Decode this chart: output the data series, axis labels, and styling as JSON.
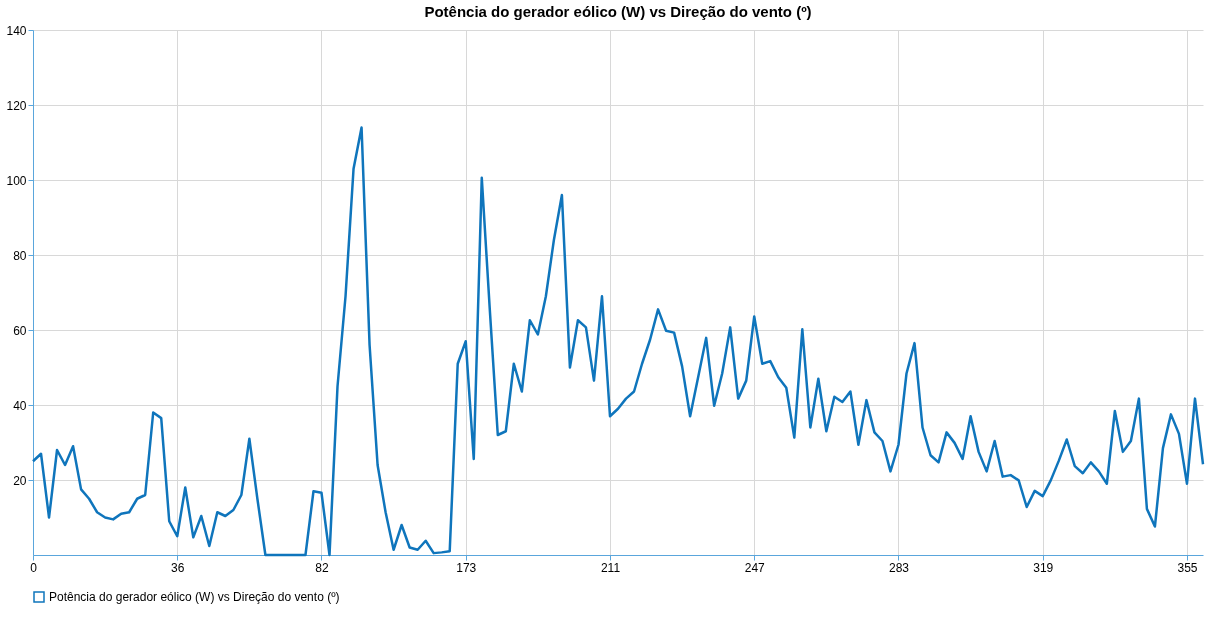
{
  "chart_data": {
    "type": "line",
    "title": "Potência do gerador eólico (W) vs Direção do vento (º)",
    "categories": [
      "0",
      null,
      null,
      null,
      null,
      null,
      null,
      null,
      null,
      null,
      null,
      null,
      null,
      null,
      null,
      null,
      null,
      null,
      "36",
      null,
      null,
      null,
      null,
      null,
      null,
      null,
      null,
      null,
      null,
      null,
      null,
      null,
      null,
      null,
      null,
      null,
      "82",
      null,
      null,
      null,
      null,
      null,
      null,
      null,
      null,
      null,
      null,
      null,
      null,
      null,
      null,
      null,
      null,
      null,
      "173",
      null,
      null,
      null,
      null,
      null,
      null,
      null,
      null,
      null,
      null,
      null,
      null,
      null,
      null,
      null,
      null,
      null,
      "211",
      null,
      null,
      null,
      null,
      null,
      null,
      null,
      null,
      null,
      null,
      null,
      null,
      null,
      null,
      null,
      null,
      null,
      "247",
      null,
      null,
      null,
      null,
      null,
      null,
      null,
      null,
      null,
      null,
      null,
      null,
      null,
      null,
      null,
      null,
      null,
      "283",
      null,
      null,
      null,
      null,
      null,
      null,
      null,
      null,
      null,
      null,
      null,
      null,
      null,
      null,
      null,
      null,
      null,
      "319",
      null,
      null,
      null,
      null,
      null,
      null,
      null,
      null,
      null,
      null,
      null,
      null,
      null,
      null,
      null,
      null,
      null,
      "355",
      null,
      null
    ],
    "series": [
      {
        "name": "Potência do gerador eólico (W) vs Direção do vento (º)",
        "color": "#0f75bc",
        "values": [
          25,
          27,
          10,
          28,
          24,
          29,
          17.5,
          15,
          11.4,
          10,
          9.5,
          11,
          11.4,
          15,
          16,
          38,
          36.5,
          9,
          5,
          18,
          4.7,
          10.4,
          2.4,
          11.4,
          10.4,
          12,
          16,
          31,
          15,
          0,
          0,
          0,
          0,
          0,
          0,
          17,
          16.6,
          0,
          45,
          69,
          103,
          114,
          56,
          24,
          11.4,
          1.4,
          8,
          2,
          1.4,
          3.8,
          0.5,
          0.7,
          1,
          51,
          57,
          25.6,
          100.6,
          65.5,
          32,
          33,
          51,
          43.6,
          62.6,
          58.8,
          69,
          84,
          96,
          50,
          62.6,
          60.7,
          46.5,
          69,
          37,
          39,
          41.7,
          43.6,
          51,
          57.4,
          65.5,
          59.8,
          59.3,
          50.3,
          37,
          47.4,
          57.9,
          39.8,
          48.4,
          60.7,
          41.7,
          46.5,
          63.6,
          51,
          51.7,
          47.4,
          44.6,
          31.3,
          60.2,
          34,
          47,
          33,
          42.2,
          40.8,
          43.6,
          29.4,
          41.3,
          32.7,
          30.4,
          22.3,
          29.4,
          48.4,
          56.5,
          34,
          26.6,
          24.7,
          32.7,
          29.9,
          25.6,
          37,
          27.5,
          22.3,
          30.4,
          20.9,
          21.3,
          19.9,
          12.8,
          17.1,
          15.7,
          19.9,
          25.1,
          30.8,
          23.7,
          21.8,
          24.7,
          22.3,
          19,
          38.4,
          27.5,
          30.4,
          41.7,
          12.3,
          7.6,
          28.5,
          37.5,
          32.3,
          19,
          41.7,
          24.2
        ]
      }
    ],
    "ylim": [
      0,
      140
    ],
    "yticks": [
      20,
      40,
      60,
      80,
      100,
      120,
      140
    ],
    "grid": true,
    "legend": "bottom left",
    "marker": "none",
    "line_style": "solid"
  }
}
